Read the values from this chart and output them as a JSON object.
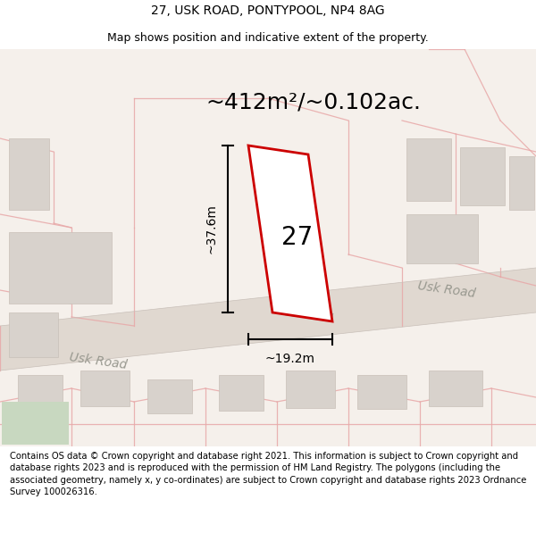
{
  "title_line1": "27, USK ROAD, PONTYPOOL, NP4 8AG",
  "title_line2": "Map shows position and indicative extent of the property.",
  "area_text": "~412m²/~0.102ac.",
  "dim_width": "~19.2m",
  "dim_height": "~37.6m",
  "house_number": "27",
  "road_label_left": "Usk Road",
  "road_label_right": "Usk Road",
  "footer_text": "Contains OS data © Crown copyright and database right 2021. This information is subject to Crown copyright and database rights 2023 and is reproduced with the permission of HM Land Registry. The polygons (including the associated geometry, namely x, y co-ordinates) are subject to Crown copyright and database rights 2023 Ordnance Survey 100026316.",
  "map_bg": "#f5f0eb",
  "road_fill": "#e0d8d0",
  "building_fill": "#d8d2cc",
  "building_edge": "#c8c0b8",
  "property_fill": "#ffffff",
  "property_stroke": "#cc0000",
  "pink_line_color": "#e8a8a8",
  "green_fill": "#c8d8c0",
  "dim_line_color": "#000000",
  "road_text_color": "#999990",
  "title_fontsize": 10,
  "subtitle_fontsize": 9,
  "area_fontsize": 18,
  "road_label_fontsize": 10,
  "footer_fontsize": 7.2
}
